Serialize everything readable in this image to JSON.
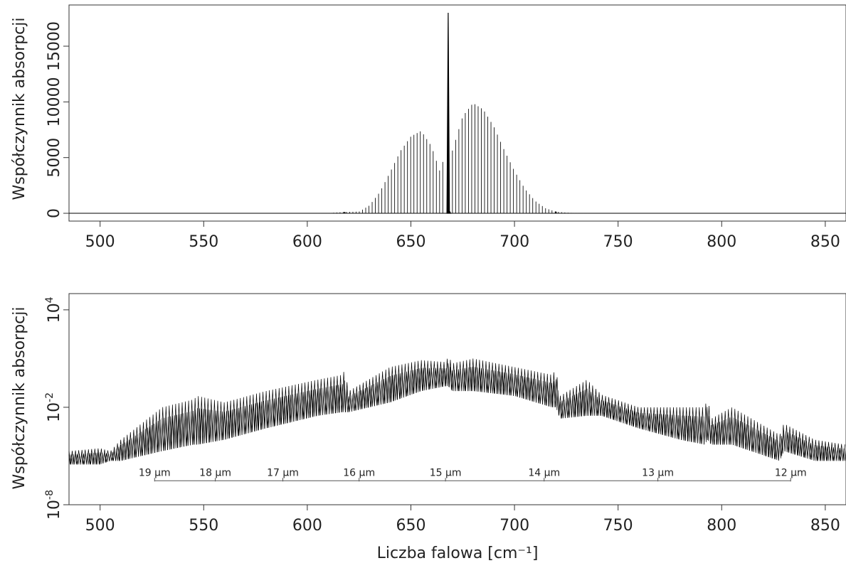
{
  "chart_data": [
    {
      "type": "line",
      "title": "",
      "xlabel": "",
      "ylabel": "Współczynnik absorpcji",
      "xlim": [
        485,
        860
      ],
      "ylim": [
        -700,
        18700
      ],
      "x_ticks": [
        "500",
        "550",
        "600",
        "650",
        "700",
        "750",
        "800",
        "850"
      ],
      "y_ticks": [
        "0",
        "5000",
        "10000",
        "15000"
      ],
      "grid": false,
      "series": [
        {
          "values_note_free": true,
          "x": [
            600,
            610,
            618,
            625,
            630,
            635,
            640,
            645,
            650,
            655,
            660,
            665,
            667.5,
            668,
            670,
            675,
            680,
            685,
            690,
            695,
            700,
            705,
            710,
            715,
            720,
            725,
            730,
            740
          ],
          "y": [
            0,
            20,
            120,
            150,
            700,
            1900,
            3700,
            5600,
            6900,
            7400,
            6000,
            3200,
            12000,
            18000,
            5600,
            8700,
            9900,
            9300,
            7800,
            5700,
            3800,
            2200,
            1100,
            450,
            150,
            60,
            20,
            0
          ]
        }
      ]
    },
    {
      "type": "line",
      "title": "",
      "xlabel": "Liczba falowa [cm⁻¹]",
      "ylabel": "Współczynnik absorpcji",
      "yscale": "log",
      "xlim": [
        485,
        860
      ],
      "ylim": [
        1e-08,
        100000
      ],
      "x_ticks": [
        "500",
        "550",
        "600",
        "650",
        "700",
        "750",
        "800",
        "850"
      ],
      "y_ticks": [
        {
          "base": "10",
          "exp": "-8"
        },
        {
          "base": "10",
          "exp": "-2"
        },
        {
          "base": "10",
          "exp": "4"
        }
      ],
      "grid": false,
      "series": [
        {
          "x": [
            485,
            500,
            505,
            510,
            530,
            545,
            547,
            560,
            580,
            605,
            617,
            618,
            620,
            640,
            655,
            667,
            668,
            670,
            680,
            700,
            718,
            720,
            722,
            735,
            742,
            760,
            780,
            792,
            793,
            795,
            805,
            828,
            830,
            845,
            860
          ],
          "upper": [
            2e-05,
            3e-05,
            2e-05,
            0.0001,
            0.01,
            0.03,
            0.05,
            0.02,
            0.1,
            0.5,
            1,
            2,
            0.1,
            3,
            8,
            6,
            15,
            5,
            10,
            3,
            1,
            2,
            0.05,
            0.5,
            0.06,
            0.01,
            0.01,
            0.01,
            0.05,
            0.002,
            0.01,
            0.0002,
            0.001,
            0.0001,
            5e-05
          ],
          "lower": [
            3e-06,
            3e-06,
            5e-06,
            5e-06,
            2e-05,
            5e-05,
            5e-05,
            0.0001,
            0.0005,
            0.003,
            0.005,
            0.005,
            0.005,
            0.02,
            0.1,
            0.2,
            0.2,
            0.1,
            0.1,
            0.05,
            0.01,
            0.01,
            0.002,
            0.003,
            0.003,
            0.0005,
            0.0001,
            5e-05,
            0.0001,
            5e-05,
            5e-05,
            5e-06,
            2e-05,
            5e-06,
            5e-06
          ]
        }
      ],
      "wavelength_scale": {
        "labels": [
          "19 µm",
          "18 µm",
          "17 µm",
          "16 µm",
          "15 µm",
          "14 µm",
          "13 µm",
          "12 µm"
        ],
        "wavenumbers": [
          526.3,
          555.6,
          588.2,
          625,
          666.7,
          714.3,
          769.2,
          833.3
        ],
        "y_level": 3e-07
      }
    }
  ]
}
